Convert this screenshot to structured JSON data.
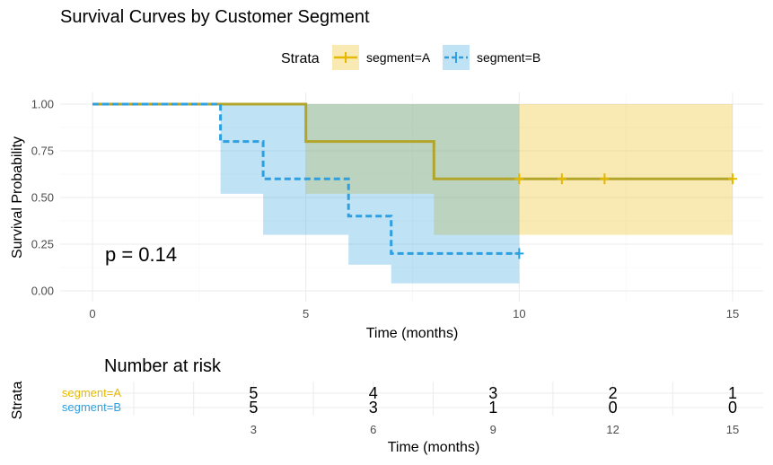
{
  "chart_data": {
    "type": "line",
    "title": "Survival Curves by Customer Segment",
    "xlabel": "Time (months)",
    "ylabel": "Survival Probability",
    "xlim": [
      0,
      15
    ],
    "ylim": [
      0,
      1
    ],
    "x_ticks": [
      0,
      5,
      10,
      15
    ],
    "y_ticks": [
      "0.00",
      "0.25",
      "0.50",
      "0.75",
      "1.00"
    ],
    "legend": {
      "title": "Strata",
      "position": "top"
    },
    "pvalue_label": "p = 0.14",
    "series": [
      {
        "name": "segment=A",
        "color": "#E7B800",
        "line_color": "#b3a52a",
        "band_color": "#E7B800",
        "line_style": "solid",
        "steps": [
          [
            0,
            1.0
          ],
          [
            5,
            0.8
          ],
          [
            8,
            0.6
          ],
          [
            15,
            0.6
          ]
        ],
        "ci_lower": [
          [
            0,
            1.0
          ],
          [
            5,
            0.52
          ],
          [
            8,
            0.3
          ],
          [
            15,
            0.3
          ]
        ],
        "ci_upper": [
          [
            0,
            1.0
          ],
          [
            10,
            1.0
          ],
          [
            15,
            1.0
          ]
        ],
        "censor_x": [
          10,
          11,
          12,
          15
        ],
        "censor_y": [
          0.6,
          0.6,
          0.6,
          0.6
        ]
      },
      {
        "name": "segment=B",
        "color": "#2E9FDF",
        "line_color": "#2E9FDF",
        "band_color": "#2E9FDF",
        "line_style": "dashed",
        "steps": [
          [
            0,
            1.0
          ],
          [
            3,
            0.8
          ],
          [
            4,
            0.6
          ],
          [
            6,
            0.4
          ],
          [
            7,
            0.2
          ],
          [
            10,
            0.2
          ]
        ],
        "ci_lower": [
          [
            0,
            1.0
          ],
          [
            3,
            0.52
          ],
          [
            4,
            0.3
          ],
          [
            6,
            0.14
          ],
          [
            7,
            0.04
          ],
          [
            10,
            0.04
          ]
        ],
        "ci_upper": [
          [
            0,
            1.0
          ],
          [
            10,
            1.0
          ]
        ],
        "censor_x": [
          10
        ],
        "censor_y": [
          0.2
        ]
      }
    ]
  },
  "risk_table": {
    "title": "Number at risk",
    "strata_label": "Strata",
    "xlabel": "Time (months)",
    "times": [
      3,
      6,
      9,
      12,
      15
    ],
    "xlim": [
      0,
      15
    ],
    "rows": [
      {
        "label": "segment=A",
        "color": "#E7B800",
        "counts": [
          5,
          4,
          3,
          2,
          1
        ]
      },
      {
        "label": "segment=B",
        "color": "#2E9FDF",
        "counts": [
          5,
          3,
          1,
          0,
          0
        ]
      }
    ]
  }
}
